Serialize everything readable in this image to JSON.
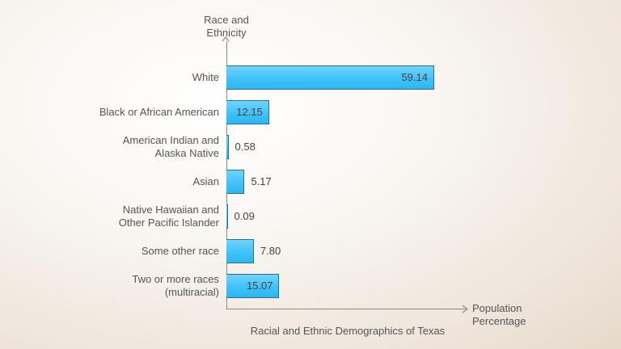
{
  "chart_data": {
    "type": "bar",
    "orientation": "horizontal",
    "title": "Racial and Ethnic Demographics of Texas",
    "xlabel": "Population Percentage",
    "ylabel": "Race and Ethnicity",
    "categories": [
      "White",
      "Black or African American",
      "American Indian and Alaska Native",
      "Asian",
      "Native Hawaiian and Other Pacific Islander",
      "Some other race",
      "Two or more races (multiracial)"
    ],
    "values": [
      59.14,
      12.15,
      0.58,
      5.17,
      0.09,
      7.8,
      15.07
    ],
    "value_labels": [
      "59.14",
      "12.15",
      "0.58",
      "5.17",
      "0.09",
      "7.80",
      "15.07"
    ],
    "grid": false,
    "legend": "none",
    "bar_color": "#3ec0f8",
    "bar_edge_color": "#2e6e8a"
  },
  "labels": {
    "y_title_line1": "Race and",
    "y_title_line2": "Ethnicity",
    "x_title_line1": "Population",
    "x_title_line2": "Percentage",
    "caption": "Racial and Ethnic Demographics of Texas",
    "cats": [
      [
        "White"
      ],
      [
        "Black or African American"
      ],
      [
        "American Indian and",
        "Alaska Native"
      ],
      [
        "Asian"
      ],
      [
        "Native Hawaiian and",
        "Other Pacific Islander"
      ],
      [
        "Some other race"
      ],
      [
        "Two or more races",
        "(multiracial)"
      ]
    ]
  }
}
